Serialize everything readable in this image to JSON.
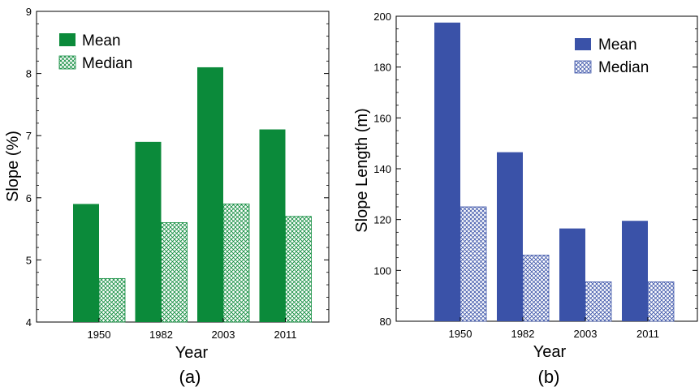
{
  "chart_data": [
    {
      "type": "bar",
      "panel_label": "(a)",
      "categories": [
        "1950",
        "1982",
        "2003",
        "2011"
      ],
      "series": [
        {
          "name": "Mean",
          "values": [
            5.9,
            6.9,
            8.1,
            7.1
          ],
          "color": "#0b8a3a",
          "fill": "solid"
        },
        {
          "name": "Median",
          "values": [
            4.7,
            5.6,
            5.9,
            5.7
          ],
          "color": "#0b8a3a",
          "fill": "crosshatch"
        }
      ],
      "xlabel": "Year",
      "ylabel": "Slope (%)",
      "ylim": [
        4,
        9
      ],
      "yticks": [
        "4",
        "5",
        "6",
        "7",
        "8",
        "9"
      ],
      "grid": false,
      "legend_position": "top-left"
    },
    {
      "type": "bar",
      "panel_label": "(b)",
      "categories": [
        "1950",
        "1982",
        "2003",
        "2011"
      ],
      "series": [
        {
          "name": "Mean",
          "values": [
            197.5,
            146.5,
            116.5,
            119.5
          ],
          "color": "#3a52a8",
          "fill": "solid"
        },
        {
          "name": "Median",
          "values": [
            125,
            106,
            95.5,
            95.5
          ],
          "color": "#3a52a8",
          "fill": "crosshatch"
        }
      ],
      "xlabel": "Year",
      "ylabel": "Slope Length  (m)",
      "ylim": [
        80,
        200
      ],
      "yticks": [
        "80",
        "100",
        "120",
        "140",
        "160",
        "180",
        "200"
      ],
      "grid": false,
      "legend_position": "top-right"
    }
  ]
}
